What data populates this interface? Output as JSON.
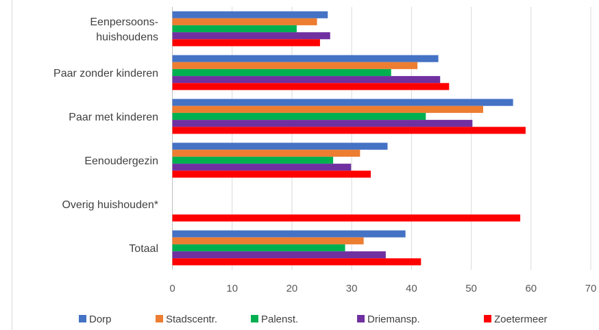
{
  "chart_data": {
    "type": "bar",
    "orientation": "horizontal",
    "title": "",
    "xlabel": "",
    "ylabel": "",
    "categories": [
      [
        "Eenpersoons-",
        "huishoudens"
      ],
      [
        "Paar zonder kinderen"
      ],
      [
        "Paar met kinderen"
      ],
      [
        "Eenoudergezin"
      ],
      [
        "Overig huishouden*"
      ],
      [
        "Totaal"
      ]
    ],
    "series": [
      {
        "name": "Dorp",
        "color": "#4472C4",
        "values": [
          26,
          44.5,
          57,
          36,
          null,
          39
        ]
      },
      {
        "name": "Stadscentr.",
        "color": "#ED7D31",
        "values": [
          24.2,
          41,
          52,
          31.4,
          null,
          32
        ]
      },
      {
        "name": "Palenst.",
        "color": "#00B050",
        "values": [
          20.8,
          36.6,
          42.4,
          26.9,
          null,
          28.9
        ]
      },
      {
        "name": "Driemansp.",
        "color": "#7030A0",
        "values": [
          26.4,
          44.8,
          50.2,
          29.9,
          null,
          35.7
        ]
      },
      {
        "name": "Zoetermeer",
        "color": "#FF0000",
        "values": [
          24.7,
          46.3,
          59.1,
          33.2,
          58.2,
          41.6
        ]
      }
    ],
    "xlim": [
      0,
      70
    ],
    "xticks": [
      "0",
      "10",
      "20",
      "30",
      "40",
      "50",
      "60",
      "70"
    ],
    "grid": "vertical",
    "legend": "bottom"
  }
}
